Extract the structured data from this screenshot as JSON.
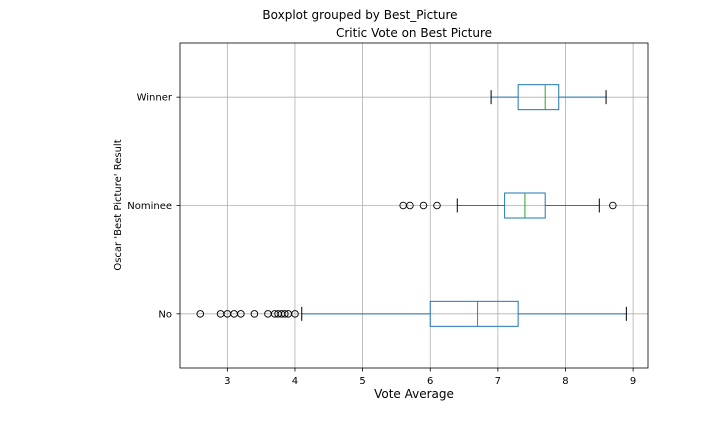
{
  "chart_data": {
    "type": "boxplot",
    "orientation": "horizontal",
    "suptitle": "Boxplot grouped by Best_Picture",
    "title": "Critic Vote on Best Picture",
    "xlabel": "Vote Average",
    "ylabel": "Oscar 'Best Picture' Result",
    "xlim": [
      2.3,
      9.22
    ],
    "xticks": [
      3,
      4,
      5,
      6,
      7,
      8,
      9
    ],
    "grid": true,
    "colors": {
      "box": "#1f77b4",
      "median": "#2ca02c",
      "whisker": "#1f77b4",
      "cap": "#000000",
      "flier": "#000000"
    },
    "groups": [
      {
        "name": "No",
        "whislo": 4.1,
        "q1": 6.0,
        "med": 6.7,
        "q3": 7.3,
        "whishi": 8.9,
        "fliers": [
          2.6,
          2.9,
          3.0,
          3.1,
          3.2,
          3.4,
          3.6,
          3.7,
          3.75,
          3.8,
          3.85,
          3.9,
          4.0
        ]
      },
      {
        "name": "Nominee",
        "whislo": 6.4,
        "q1": 7.1,
        "med": 7.4,
        "q3": 7.7,
        "whishi": 8.5,
        "fliers": [
          5.6,
          5.7,
          5.9,
          6.1,
          8.7
        ]
      },
      {
        "name": "Winner",
        "whislo": 6.9,
        "q1": 7.3,
        "med": 7.7,
        "q3": 7.9,
        "whishi": 8.6,
        "fliers": []
      }
    ]
  }
}
